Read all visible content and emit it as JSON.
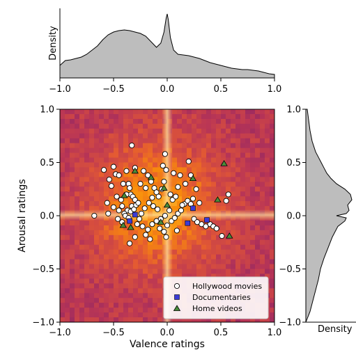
{
  "chart_data": {
    "type": "scatter",
    "xlabel": "Valence ratings",
    "ylabel": "Arousal ratings",
    "xlim": [
      -1.0,
      1.0
    ],
    "ylim": [
      -1.0,
      1.0
    ],
    "ticks": [
      -1.0,
      -0.5,
      0.0,
      0.5,
      1.0
    ],
    "tick_labels": [
      "−1.0",
      "−0.5",
      "0.0",
      "0.5",
      "1.0"
    ],
    "background": "2D density heatmap (inferno colormap) with bright cross at valence 0 and arousal 0",
    "legend": {
      "placement": "lower-right",
      "entries": [
        {
          "name": "Hollywood movies",
          "marker": "circle",
          "color": "#ffffff"
        },
        {
          "name": "Documentaries",
          "marker": "square",
          "color": "#3b3bd6"
        },
        {
          "name": "Home videos",
          "marker": "triangle",
          "color": "#4a8c3a"
        }
      ]
    },
    "series": [
      {
        "name": "Hollywood movies",
        "points": [
          [
            -0.68,
            0.0
          ],
          [
            -0.59,
            0.43
          ],
          [
            -0.54,
            0.34
          ],
          [
            -0.5,
            0.46
          ],
          [
            -0.48,
            0.39
          ],
          [
            -0.45,
            0.38
          ],
          [
            -0.43,
            0.15
          ],
          [
            -0.42,
            0.09
          ],
          [
            -0.52,
            0.28
          ],
          [
            -0.41,
            0.3
          ],
          [
            -0.38,
            0.42
          ],
          [
            -0.36,
            0.3
          ],
          [
            -0.35,
            0.26
          ],
          [
            -0.34,
            0.2
          ],
          [
            -0.32,
            0.18
          ],
          [
            -0.3,
            0.15
          ],
          [
            -0.33,
            0.09
          ],
          [
            -0.37,
            0.05
          ],
          [
            -0.4,
            0.02
          ],
          [
            -0.45,
            0.05
          ],
          [
            -0.5,
            0.08
          ],
          [
            -0.55,
            0.02
          ],
          [
            -0.46,
            -0.03
          ],
          [
            -0.42,
            -0.06
          ],
          [
            -0.39,
            0.0
          ],
          [
            -0.36,
            -0.02
          ],
          [
            -0.34,
            0.04
          ],
          [
            -0.31,
            0.06
          ],
          [
            -0.29,
            0.1
          ],
          [
            -0.27,
            0.12
          ],
          [
            -0.25,
            0.3
          ],
          [
            -0.33,
            0.66
          ],
          [
            -0.3,
            0.45
          ],
          [
            -0.22,
            0.42
          ],
          [
            -0.18,
            0.38
          ],
          [
            -0.15,
            0.32
          ],
          [
            -0.2,
            0.26
          ],
          [
            -0.12,
            0.26
          ],
          [
            -0.1,
            0.22
          ],
          [
            -0.08,
            0.18
          ],
          [
            -0.05,
            0.25
          ],
          [
            -0.03,
            0.32
          ],
          [
            -0.01,
            0.43
          ],
          [
            -0.02,
            0.58
          ],
          [
            -0.04,
            0.47
          ],
          [
            0.03,
            0.2
          ],
          [
            0.05,
            0.15
          ],
          [
            0.08,
            0.18
          ],
          [
            0.1,
            0.27
          ],
          [
            0.12,
            0.38
          ],
          [
            0.02,
            0.05
          ],
          [
            -0.02,
            0.0
          ],
          [
            -0.06,
            -0.03
          ],
          [
            -0.09,
            0.06
          ],
          [
            -0.13,
            0.09
          ],
          [
            -0.17,
            0.12
          ],
          [
            -0.21,
            0.07
          ],
          [
            -0.24,
            0.02
          ],
          [
            -0.26,
            -0.03
          ],
          [
            -0.28,
            -0.08
          ],
          [
            -0.23,
            -0.1
          ],
          [
            -0.18,
            -0.13
          ],
          [
            -0.14,
            -0.08
          ],
          [
            -0.1,
            -0.05
          ],
          [
            -0.07,
            -0.12
          ],
          [
            -0.03,
            -0.15
          ],
          [
            0.0,
            -0.09
          ],
          [
            0.04,
            -0.05
          ],
          [
            0.07,
            -0.02
          ],
          [
            0.1,
            0.02
          ],
          [
            0.13,
            0.05
          ],
          [
            0.16,
            0.11
          ],
          [
            0.19,
            0.14
          ],
          [
            0.22,
            0.11
          ],
          [
            0.24,
            0.16
          ],
          [
            0.27,
            0.25
          ],
          [
            0.22,
            0.38
          ],
          [
            0.2,
            0.51
          ],
          [
            0.17,
            0.3
          ],
          [
            0.14,
            0.1
          ],
          [
            0.25,
            -0.03
          ],
          [
            0.28,
            -0.06
          ],
          [
            0.32,
            -0.08
          ],
          [
            0.36,
            -0.1
          ],
          [
            0.4,
            -0.08
          ],
          [
            0.43,
            -0.1
          ],
          [
            0.46,
            -0.12
          ],
          [
            0.51,
            -0.19
          ],
          [
            0.55,
            0.14
          ],
          [
            0.57,
            0.2
          ],
          [
            0.3,
            0.12
          ],
          [
            -0.2,
            -0.18
          ],
          [
            -0.3,
            -0.2
          ],
          [
            -0.35,
            -0.26
          ],
          [
            -0.16,
            -0.22
          ],
          [
            -0.01,
            -0.2
          ],
          [
            0.09,
            -0.14
          ],
          [
            -0.47,
            0.18
          ],
          [
            -0.56,
            0.12
          ],
          [
            -0.38,
            0.2
          ],
          [
            -0.14,
            0.17
          ],
          [
            0.06,
            0.4
          ]
        ]
      },
      {
        "name": "Documentaries",
        "points": [
          [
            -0.3,
            0.01
          ],
          [
            -0.35,
            -0.05
          ],
          [
            0.24,
            0.07
          ],
          [
            0.19,
            -0.07
          ],
          [
            0.37,
            -0.04
          ]
        ]
      },
      {
        "name": "Home videos",
        "points": [
          [
            -0.4,
            0.19
          ],
          [
            -0.3,
            0.42
          ],
          [
            -0.15,
            0.36
          ],
          [
            -0.03,
            0.26
          ],
          [
            0.24,
            0.35
          ],
          [
            -0.34,
            -0.11
          ],
          [
            -0.41,
            -0.09
          ],
          [
            0.0,
            0.1
          ],
          [
            0.47,
            0.15
          ],
          [
            0.53,
            0.49
          ],
          [
            0.58,
            -0.19
          ],
          [
            -0.06,
            -0.06
          ]
        ]
      }
    ],
    "top_marginal": {
      "ylabel": "Density",
      "x": [
        -1.0,
        -0.95,
        -0.9,
        -0.85,
        -0.8,
        -0.75,
        -0.7,
        -0.65,
        -0.6,
        -0.55,
        -0.5,
        -0.45,
        -0.4,
        -0.35,
        -0.3,
        -0.25,
        -0.2,
        -0.15,
        -0.1,
        -0.06,
        -0.03,
        -0.01,
        0.0,
        0.01,
        0.03,
        0.06,
        0.1,
        0.15,
        0.2,
        0.25,
        0.3,
        0.35,
        0.4,
        0.45,
        0.5,
        0.55,
        0.6,
        0.65,
        0.7,
        0.75,
        0.8,
        0.85,
        0.9,
        0.95,
        1.0
      ],
      "density": [
        0.18,
        0.25,
        0.26,
        0.28,
        0.3,
        0.34,
        0.4,
        0.46,
        0.55,
        0.62,
        0.66,
        0.68,
        0.69,
        0.68,
        0.66,
        0.64,
        0.6,
        0.52,
        0.44,
        0.5,
        0.66,
        0.86,
        0.92,
        0.84,
        0.58,
        0.4,
        0.34,
        0.33,
        0.32,
        0.3,
        0.28,
        0.25,
        0.22,
        0.2,
        0.18,
        0.16,
        0.14,
        0.13,
        0.12,
        0.12,
        0.11,
        0.1,
        0.08,
        0.06,
        0.05
      ]
    },
    "right_marginal": {
      "xlabel": "Density",
      "y": [
        -1.0,
        -0.9,
        -0.8,
        -0.7,
        -0.6,
        -0.5,
        -0.4,
        -0.3,
        -0.2,
        -0.1,
        -0.05,
        -0.02,
        0.0,
        0.02,
        0.05,
        0.1,
        0.15,
        0.2,
        0.25,
        0.3,
        0.35,
        0.4,
        0.45,
        0.5,
        0.55,
        0.6,
        0.7,
        0.8,
        0.9,
        0.95,
        1.0
      ],
      "density": [
        0.0,
        0.06,
        0.1,
        0.14,
        0.18,
        0.21,
        0.26,
        0.32,
        0.38,
        0.46,
        0.56,
        0.58,
        0.44,
        0.58,
        0.62,
        0.6,
        0.66,
        0.64,
        0.56,
        0.44,
        0.36,
        0.3,
        0.26,
        0.22,
        0.18,
        0.14,
        0.09,
        0.06,
        0.04,
        0.03,
        0.02
      ]
    }
  },
  "ui": {
    "colors": {
      "hollywood_fill": "#ffffff",
      "documentary_fill": "#3b3bd6",
      "homevideo_fill": "#4a8c3a",
      "marker_edge": "#000000",
      "marginal_fill": "#bdbdbd"
    }
  }
}
